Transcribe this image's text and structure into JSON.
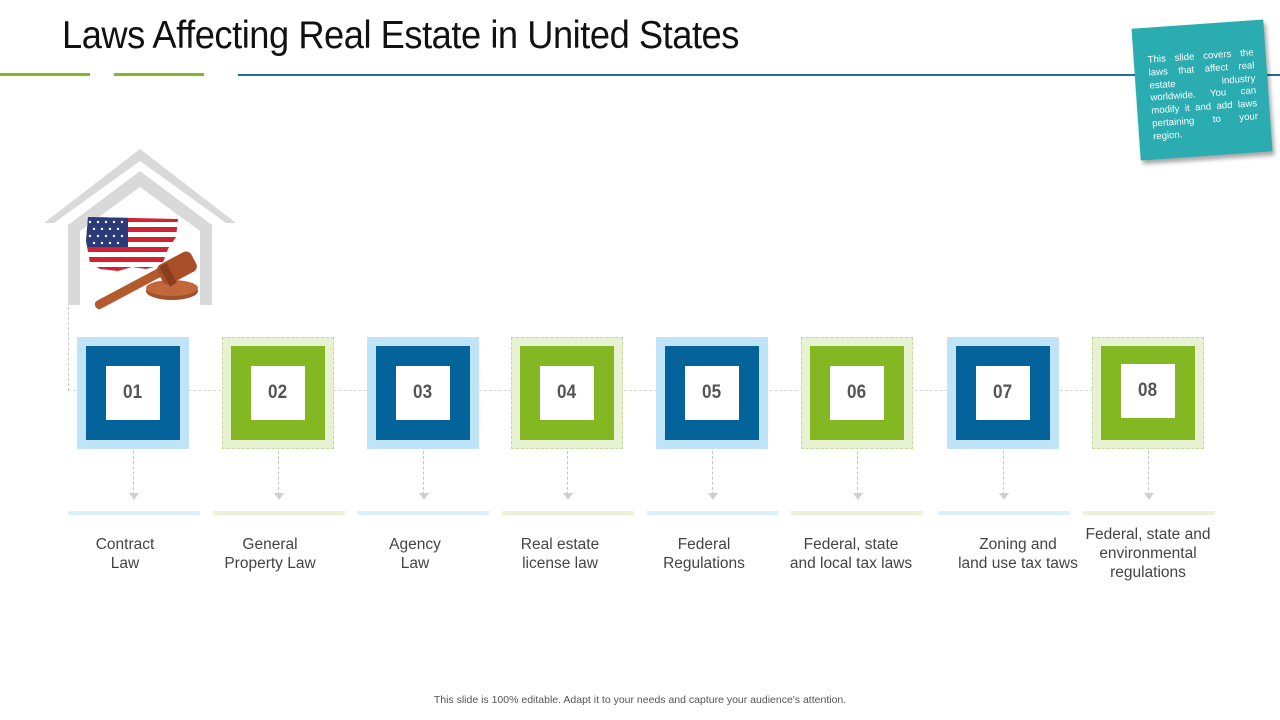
{
  "title": "Laws Affecting Real Estate in United States",
  "note": "This slide covers the laws that affect real estate industry worldwide. You can modify it and add laws pertaining to your region.",
  "steps": [
    {
      "number": "01",
      "line1": "Contract",
      "line2": "Law",
      "line3": ""
    },
    {
      "number": "02",
      "line1": "General",
      "line2": "Property Law",
      "line3": ""
    },
    {
      "number": "03",
      "line1": "Agency",
      "line2": "Law",
      "line3": ""
    },
    {
      "number": "04",
      "line1": "Real estate",
      "line2": "license law",
      "line3": ""
    },
    {
      "number": "05",
      "line1": "Federal",
      "line2": "Regulations",
      "line3": ""
    },
    {
      "number": "06",
      "line1": "Federal, state",
      "line2": "and local tax laws",
      "line3": ""
    },
    {
      "number": "07",
      "line1": "Zoning and",
      "line2": "land use tax taws",
      "line3": ""
    },
    {
      "number": "08",
      "line1": "Federal, state and",
      "line2": "environmental",
      "line3": "regulations"
    }
  ],
  "footer": "This slide is 100% editable. Adapt it to your needs and capture your audience's attention.",
  "colors": {
    "blue": "#03639a",
    "green": "#83b823",
    "teal_note": "#2bacb1",
    "light_blue": "#bfe4f7",
    "light_green": "#e6f2d2"
  }
}
